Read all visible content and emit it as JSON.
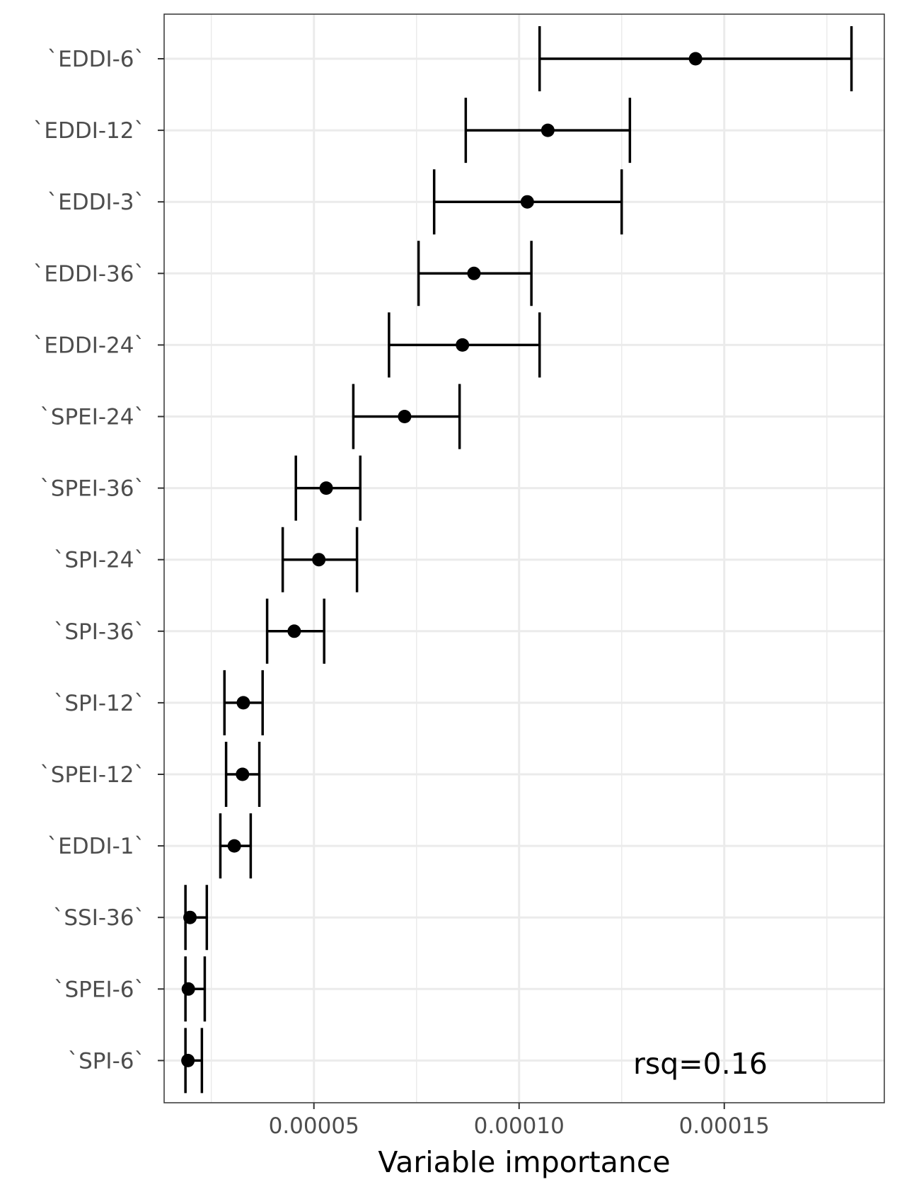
{
  "chart_data": {
    "type": "scatter",
    "subtype": "point-errorbar",
    "orientation": "horizontal",
    "title": "",
    "xlabel": "Variable importance",
    "ylabel": "",
    "xlim": [
      1.35e-05,
      0.000189
    ],
    "x_ticks": [
      {
        "value": 5e-05,
        "label": "0.00005"
      },
      {
        "value": 0.0001,
        "label": "0.00010"
      },
      {
        "value": 0.00015,
        "label": "0.00015"
      }
    ],
    "x_minor_ticks": [
      2.5e-05,
      7.5e-05,
      0.000125,
      0.000175
    ],
    "grid": true,
    "legend": "none",
    "point_color": "#000000",
    "categories": [
      "`EDDI-6`",
      "`EDDI-12`",
      "`EDDI-3`",
      "`EDDI-36`",
      "`EDDI-24`",
      "`SPEI-24`",
      "`SPEI-36`",
      "`SPI-24`",
      "`SPI-36`",
      "`SPI-12`",
      "`SPEI-12`",
      "`EDDI-1`",
      "`SSI-36`",
      "`SPEI-6`",
      "`SPI-6`"
    ],
    "values": [
      0.000143,
      0.000107,
      0.000102,
      8.9e-05,
      8.62e-05,
      7.21e-05,
      5.3e-05,
      5.12e-05,
      4.52e-05,
      3.28e-05,
      3.26e-05,
      3.06e-05,
      1.98e-05,
      1.94e-05,
      1.93e-05
    ],
    "lower": [
      0.000105,
      8.7e-05,
      7.93e-05,
      7.55e-05,
      6.83e-05,
      5.96e-05,
      4.56e-05,
      4.24e-05,
      3.86e-05,
      2.82e-05,
      2.86e-05,
      2.72e-05,
      1.87e-05,
      1.87e-05,
      1.87e-05
    ],
    "upper": [
      0.000181,
      0.000127,
      0.000125,
      0.000103,
      0.000105,
      8.55e-05,
      6.13e-05,
      6.05e-05,
      5.25e-05,
      3.75e-05,
      3.67e-05,
      3.46e-05,
      2.39e-05,
      2.34e-05,
      2.27e-05
    ],
    "annotations": [
      {
        "text": "rsq=0.16"
      }
    ]
  }
}
